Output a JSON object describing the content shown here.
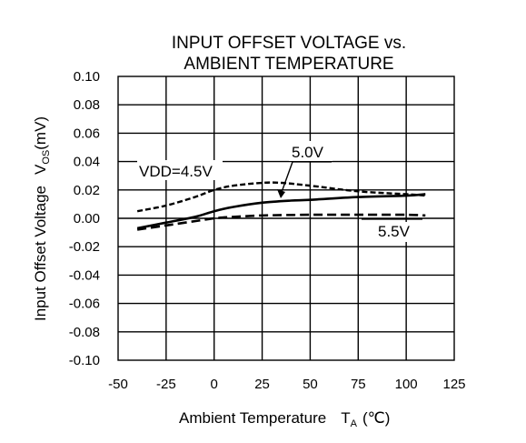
{
  "chart_data": {
    "type": "line",
    "title_lines": [
      "INPUT OFFSET VOLTAGE vs.",
      "AMBIENT TEMPERATURE"
    ],
    "xlabel": "Ambient Temperature",
    "xlabel_symbol": "T",
    "xlabel_sub": "A",
    "xlabel_unit": "(℃)",
    "ylabel": "Input Offset Voltage",
    "ylabel_symbol": "V",
    "ylabel_sub": "OS",
    "ylabel_unit": "(mV)",
    "xlim": [
      -50,
      125
    ],
    "ylim": [
      -0.1,
      0.1
    ],
    "xticks": [
      -50,
      -25,
      0,
      25,
      50,
      75,
      100,
      125
    ],
    "yticks": [
      0.1,
      0.08,
      0.06,
      0.04,
      0.02,
      0.0,
      -0.02,
      -0.04,
      -0.06,
      -0.08,
      -0.1
    ],
    "ytick_labels": [
      "0.10",
      "0.08",
      "0.06",
      "0.04",
      "0.02",
      "0.00",
      "-0.02",
      "-0.04",
      "-0.06",
      "-0.08",
      "-0.10"
    ],
    "grid": true,
    "series": [
      {
        "name": "VDD=4.5V",
        "style": "short-dash",
        "points": [
          [
            -40,
            0.005
          ],
          [
            -25,
            0.009
          ],
          [
            -10,
            0.015
          ],
          [
            0,
            0.02
          ],
          [
            10,
            0.023
          ],
          [
            25,
            0.025
          ],
          [
            35,
            0.025
          ],
          [
            50,
            0.023
          ],
          [
            75,
            0.019
          ],
          [
            100,
            0.017
          ],
          [
            110,
            0.016
          ]
        ]
      },
      {
        "name": "5.0V",
        "style": "solid",
        "points": [
          [
            -40,
            -0.007
          ],
          [
            -25,
            -0.003
          ],
          [
            -10,
            0.001
          ],
          [
            0,
            0.005
          ],
          [
            10,
            0.008
          ],
          [
            25,
            0.011
          ],
          [
            40,
            0.0125
          ],
          [
            50,
            0.013
          ],
          [
            75,
            0.015
          ],
          [
            100,
            0.016
          ],
          [
            110,
            0.017
          ]
        ]
      },
      {
        "name": "5.5V",
        "style": "long-dash",
        "points": [
          [
            -40,
            -0.008
          ],
          [
            -25,
            -0.005
          ],
          [
            -10,
            -0.002
          ],
          [
            0,
            0.0
          ],
          [
            10,
            0.001
          ],
          [
            25,
            0.002
          ],
          [
            50,
            0.0025
          ],
          [
            75,
            0.0025
          ],
          [
            100,
            0.0025
          ],
          [
            110,
            0.002
          ]
        ]
      }
    ],
    "annotations": [
      {
        "text": "VDD=4.5V",
        "series": "VDD=4.5V"
      },
      {
        "text": "5.0V",
        "series": "5.0V",
        "arrow": true
      },
      {
        "text": "5.5V",
        "series": "5.5V",
        "leader": true
      }
    ],
    "colors": {
      "line": "#000000",
      "grid": "#000000",
      "background": "#ffffff"
    }
  }
}
